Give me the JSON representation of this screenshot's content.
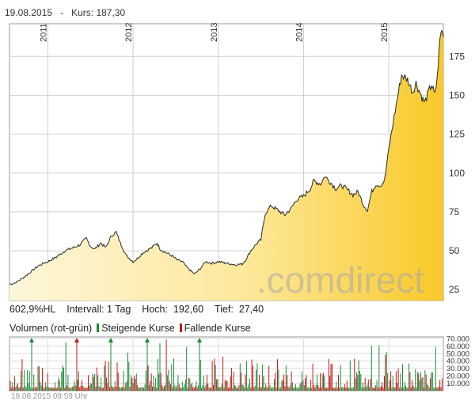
{
  "header": {
    "date": "19.08.2015",
    "separator": "-",
    "kurs_label": "Kurs:",
    "kurs_value": "187,30"
  },
  "stats": {
    "hl": "602,9%HL",
    "intervall_label": "Intervall:",
    "intervall_value": "1 Tag",
    "hoch_label": "Hoch:",
    "hoch_value": "192,60",
    "tief_label": "Tief:",
    "tief_value": "27,40"
  },
  "volume_legend": {
    "title": "Volumen (rot-grün)",
    "rising": "Steigende Kurse",
    "falling": "Fallende Kurse"
  },
  "footer": {
    "timestamp": "19.08.2015 09:59 Uhr"
  },
  "watermark": "comdirect",
  "colors": {
    "fill_light": "#fdf5d6",
    "fill_dark": "#f9c928",
    "line": "#2b2b2b",
    "rising": "#1e8a3a",
    "falling": "#c41a1a",
    "grid": "#cfcfcf"
  },
  "chart_data": [
    {
      "type": "area",
      "x_ticks": [
        "2011",
        "2012",
        "2013",
        "2014",
        "2015"
      ],
      "y_ticks": [
        25,
        50,
        75,
        100,
        125,
        150,
        175
      ],
      "y_tick_labels": [
        "25",
        "50",
        "75",
        "100",
        "125",
        "150",
        "175"
      ],
      "ylim": [
        18,
        196
      ],
      "xlim": [
        2010.55,
        2015.64
      ],
      "series": [
        {
          "values": [
            [
              2010.55,
              28.5
            ],
            [
              2010.6,
              29
            ],
            [
              2010.65,
              30.5
            ],
            [
              2010.72,
              33
            ],
            [
              2010.8,
              36.5
            ],
            [
              2010.88,
              40
            ],
            [
              2010.95,
              42
            ],
            [
              2011.0,
              43
            ],
            [
              2011.1,
              46
            ],
            [
              2011.2,
              50
            ],
            [
              2011.3,
              52
            ],
            [
              2011.38,
              54
            ],
            [
              2011.45,
              58
            ],
            [
              2011.5,
              53
            ],
            [
              2011.55,
              51
            ],
            [
              2011.62,
              55
            ],
            [
              2011.68,
              52
            ],
            [
              2011.75,
              60
            ],
            [
              2011.8,
              62
            ],
            [
              2011.85,
              55
            ],
            [
              2011.92,
              47
            ],
            [
              2012.0,
              43
            ],
            [
              2012.05,
              45
            ],
            [
              2012.1,
              48
            ],
            [
              2012.15,
              50
            ],
            [
              2012.22,
              52
            ],
            [
              2012.28,
              55
            ],
            [
              2012.32,
              51
            ],
            [
              2012.38,
              49
            ],
            [
              2012.45,
              47
            ],
            [
              2012.52,
              44
            ],
            [
              2012.58,
              43
            ],
            [
              2012.62,
              40
            ],
            [
              2012.68,
              37
            ],
            [
              2012.72,
              35
            ],
            [
              2012.78,
              38
            ],
            [
              2012.85,
              43
            ],
            [
              2012.92,
              42
            ],
            [
              2013.0,
              43
            ],
            [
              2013.1,
              42
            ],
            [
              2013.2,
              41
            ],
            [
              2013.28,
              41.5
            ],
            [
              2013.32,
              44
            ],
            [
              2013.38,
              50
            ],
            [
              2013.44,
              54
            ],
            [
              2013.5,
              57
            ],
            [
              2013.55,
              74
            ],
            [
              2013.62,
              79
            ],
            [
              2013.7,
              76
            ],
            [
              2013.78,
              73
            ],
            [
              2013.85,
              77
            ],
            [
              2013.92,
              83
            ],
            [
              2014.0,
              85
            ],
            [
              2014.08,
              90
            ],
            [
              2014.12,
              95
            ],
            [
              2014.2,
              93
            ],
            [
              2014.25,
              98
            ],
            [
              2014.3,
              95
            ],
            [
              2014.38,
              90
            ],
            [
              2014.45,
              92
            ],
            [
              2014.52,
              89
            ],
            [
              2014.58,
              86
            ],
            [
              2014.64,
              88
            ],
            [
              2014.7,
              80
            ],
            [
              2014.75,
              76
            ],
            [
              2014.8,
              88
            ],
            [
              2014.85,
              93
            ],
            [
              2014.9,
              92
            ],
            [
              2014.95,
              95
            ],
            [
              2015.0,
              115
            ],
            [
              2015.05,
              132
            ],
            [
              2015.1,
              148
            ],
            [
              2015.15,
              163
            ],
            [
              2015.22,
              160
            ],
            [
              2015.28,
              152
            ],
            [
              2015.32,
              158
            ],
            [
              2015.38,
              150
            ],
            [
              2015.42,
              145
            ],
            [
              2015.5,
              157
            ],
            [
              2015.54,
              150
            ],
            [
              2015.57,
              162
            ],
            [
              2015.6,
              186
            ],
            [
              2015.62,
              192.6
            ],
            [
              2015.64,
              187.3
            ]
          ]
        }
      ]
    },
    {
      "type": "bar",
      "title": "Volumen (rot-grün)",
      "y_ticks": [
        10000,
        20000,
        30000,
        40000,
        50000,
        60000,
        70000
      ],
      "y_tick_labels": [
        "10.000",
        "20.000",
        "30.000",
        "40.000",
        "50.000",
        "60.000",
        "70.000"
      ],
      "ylim": [
        0,
        72000
      ],
      "xlim": [
        2010.55,
        2015.64
      ]
    }
  ]
}
